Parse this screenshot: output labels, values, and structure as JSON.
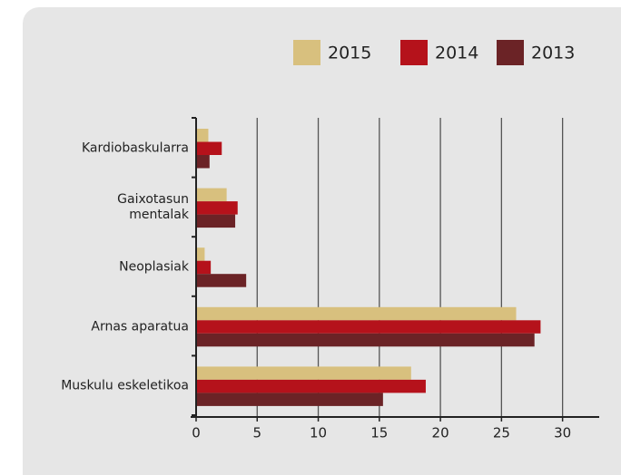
{
  "chart_data": {
    "type": "barh",
    "categories": [
      "Kardiobaskularra",
      "Gaixotasun\nmentalak",
      "Neoplasiak",
      "Arnas aparatua",
      "Muskulu eskeletikoa"
    ],
    "series": [
      {
        "name": "2015",
        "color": "#d8c07e",
        "values": [
          1.0,
          2.5,
          0.7,
          26.2,
          17.6
        ]
      },
      {
        "name": "2014",
        "color": "#b5121b",
        "values": [
          2.1,
          3.4,
          1.2,
          28.2,
          18.8
        ]
      },
      {
        "name": "2013",
        "color": "#6b2326",
        "values": [
          1.1,
          3.2,
          4.1,
          27.7,
          15.3
        ]
      }
    ],
    "xlim": [
      0,
      33
    ],
    "xticks": [
      0,
      5,
      10,
      15,
      20,
      25,
      30
    ],
    "grid": true,
    "legend": "top-right"
  }
}
